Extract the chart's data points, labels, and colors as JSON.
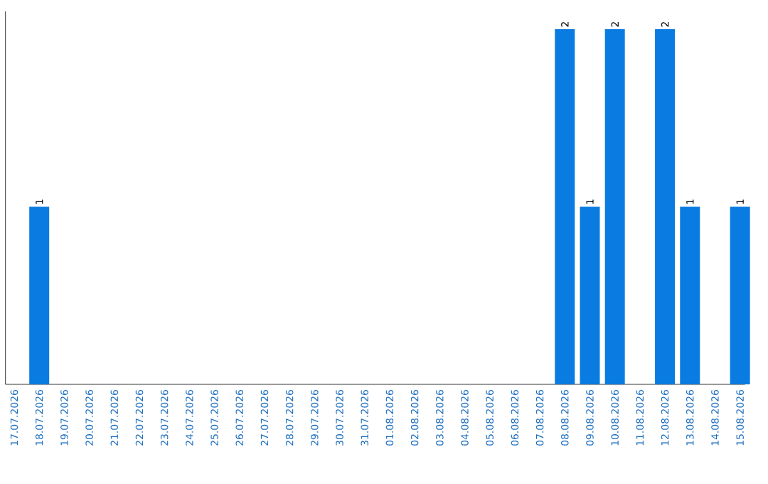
{
  "chart_data": {
    "type": "bar",
    "categories": [
      "17.07.2026",
      "18.07.2026",
      "19.07.2026",
      "20.07.2026",
      "21.07.2026",
      "22.07.2026",
      "23.07.2026",
      "24.07.2026",
      "25.07.2026",
      "26.07.2026",
      "27.07.2026",
      "28.07.2026",
      "29.07.2026",
      "30.07.2026",
      "31.07.2026",
      "01.08.2026",
      "02.08.2026",
      "03.08.2026",
      "04.08.2026",
      "05.08.2026",
      "06.08.2026",
      "07.08.2026",
      "08.08.2026",
      "09.08.2026",
      "10.08.2026",
      "11.08.2026",
      "12.08.2026",
      "13.08.2026",
      "14.08.2026",
      "15.08.2026"
    ],
    "values": [
      0,
      1,
      0,
      0,
      0,
      0,
      0,
      0,
      0,
      0,
      0,
      0,
      0,
      0,
      0,
      0,
      0,
      0,
      0,
      0,
      0,
      0,
      2,
      1,
      2,
      0,
      2,
      1,
      0,
      1
    ],
    "value_labels": [
      null,
      "1",
      null,
      null,
      null,
      null,
      null,
      null,
      null,
      null,
      null,
      null,
      null,
      null,
      null,
      null,
      null,
      null,
      null,
      null,
      null,
      null,
      "2",
      "1",
      "2",
      null,
      "2",
      "1",
      null,
      "1"
    ],
    "color": "#0a7be0",
    "tick_labels": "x"
  }
}
